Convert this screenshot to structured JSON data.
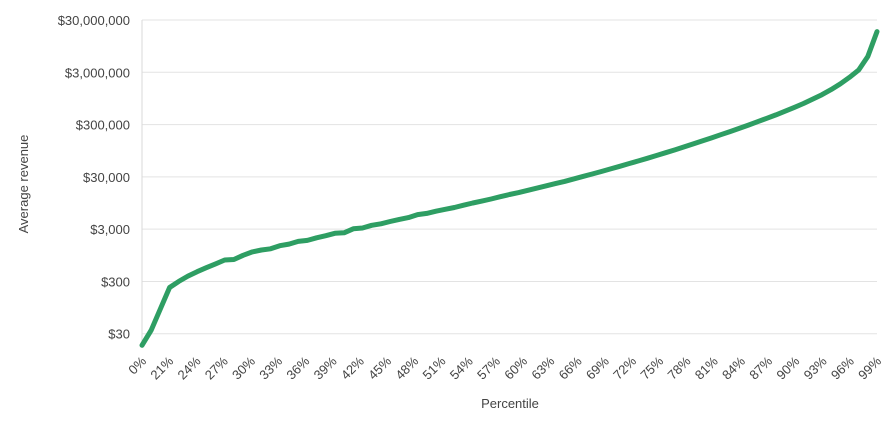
{
  "chart_data": {
    "type": "line",
    "title": "",
    "xlabel": "Percentile",
    "ylabel": "Average revenue",
    "y_scale": "log",
    "grid": true,
    "legend": "none",
    "ylim": [
      16,
      30000000
    ],
    "y_ticks": [
      {
        "value": 30,
        "label": "$30"
      },
      {
        "value": 300,
        "label": "$300"
      },
      {
        "value": 3000,
        "label": "$3,000"
      },
      {
        "value": 30000,
        "label": "$30,000"
      },
      {
        "value": 300000,
        "label": "$300,000"
      },
      {
        "value": 3000000,
        "label": "$3,000,000"
      },
      {
        "value": 30000000,
        "label": "$30,000,000"
      }
    ],
    "x_ticks": [
      "0%",
      "21%",
      "24%",
      "27%",
      "30%",
      "33%",
      "36%",
      "39%",
      "42%",
      "45%",
      "48%",
      "51%",
      "54%",
      "57%",
      "60%",
      "63%",
      "66%",
      "69%",
      "72%",
      "75%",
      "78%",
      "81%",
      "84%",
      "87%",
      "90%",
      "93%",
      "96%",
      "99%"
    ],
    "series": [
      {
        "color": "#2e9e63",
        "x": [
          0,
          1,
          2,
          3,
          4,
          5,
          6,
          7,
          8,
          9,
          10,
          11,
          12,
          13,
          14,
          15,
          16,
          17,
          18,
          19,
          20,
          21,
          22,
          23,
          24,
          25,
          26,
          27,
          28,
          29,
          30,
          31,
          32,
          33,
          34,
          35,
          36,
          37,
          38,
          39,
          40,
          41,
          42,
          43,
          44,
          45,
          46,
          47,
          48,
          49,
          50,
          51,
          52,
          53,
          54,
          55,
          56,
          57,
          58,
          59,
          60,
          61,
          62,
          63,
          64,
          65,
          66,
          67,
          68,
          69,
          70,
          71,
          72,
          73,
          74,
          75,
          76,
          77,
          78,
          79,
          80
        ],
        "y": [
          18,
          35,
          90,
          230,
          300,
          380,
          460,
          550,
          650,
          770,
          790,
          950,
          1100,
          1200,
          1260,
          1450,
          1550,
          1750,
          1830,
          2050,
          2250,
          2500,
          2550,
          3050,
          3150,
          3550,
          3800,
          4200,
          4600,
          5000,
          5700,
          6000,
          6600,
          7200,
          7800,
          8600,
          9500,
          10300,
          11300,
          12500,
          13800,
          15000,
          16600,
          18300,
          20200,
          22300,
          24600,
          27400,
          30600,
          34000,
          38000,
          42600,
          47800,
          53700,
          60400,
          68000,
          77000,
          87000,
          98500,
          112000,
          128000,
          146000,
          167000,
          192000,
          220000,
          254000,
          293000,
          340000,
          395000,
          460000,
          540000,
          640000,
          760000,
          920000,
          1120000,
          1400000,
          1800000,
          2400000,
          3300000,
          6000000,
          18000000
        ]
      }
    ]
  }
}
